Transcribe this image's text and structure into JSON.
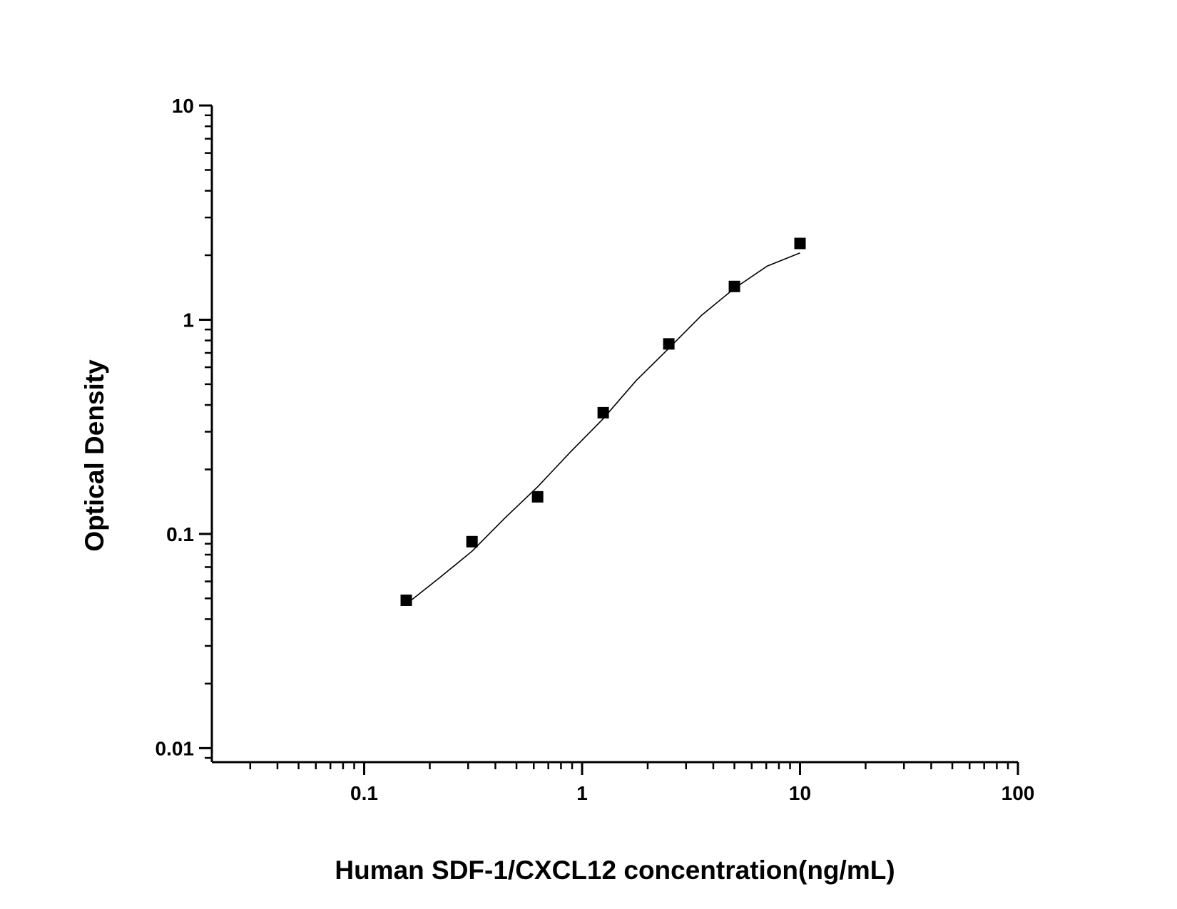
{
  "chart_data": {
    "type": "scatter",
    "x_label": "Human SDF-1/CXCL12 concentration(ng/mL)",
    "y_label": "Optical Density",
    "x_log": true,
    "y_log": true,
    "xlim": [
      0.02,
      100
    ],
    "xticks": [
      0.1,
      1,
      10,
      100
    ],
    "ylim": [
      0.0086,
      10
    ],
    "yticks": [
      0.01,
      0.1,
      1,
      10
    ],
    "minor_ticks": true,
    "series": [
      {
        "x": [
          0.156,
          0.3125,
          0.625,
          1.25,
          2.5,
          5,
          10
        ],
        "values": [
          0.049,
          0.092,
          0.149,
          0.368,
          0.771,
          1.43,
          2.27
        ],
        "color": "#000000",
        "marker": "square"
      }
    ],
    "fit": {
      "x": [
        0.156,
        0.22,
        0.3125,
        0.44,
        0.625,
        0.88,
        1.25,
        1.77,
        2.5,
        3.54,
        5,
        7.07,
        10
      ],
      "values": [
        0.047,
        0.062,
        0.083,
        0.118,
        0.166,
        0.24,
        0.345,
        0.52,
        0.735,
        1.05,
        1.4,
        1.78,
        2.05
      ],
      "color": "#000000"
    }
  }
}
